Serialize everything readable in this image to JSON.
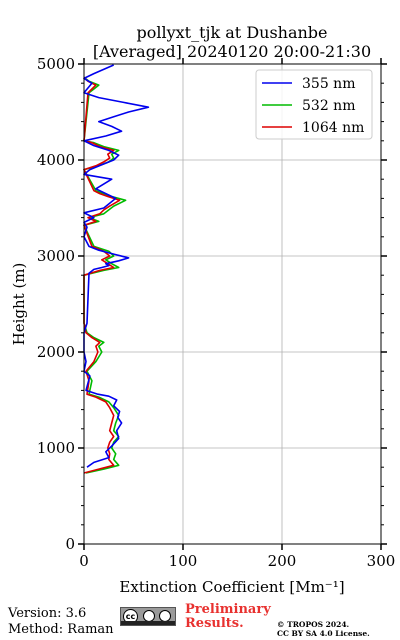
{
  "chart_data": {
    "type": "line",
    "title": "pollyxt_tjk at Dushanbe",
    "subtitle": "[Averaged] 20240120 20:00-21:30",
    "xlabel": "Extinction Coefficient [Mm⁻¹]",
    "ylabel": "Height (m)",
    "xlim": [
      0,
      300
    ],
    "ylim": [
      0,
      5000
    ],
    "xticks": [
      "0",
      "100",
      "200",
      "300"
    ],
    "yticks": [
      "0",
      "1000",
      "2000",
      "3000",
      "4000",
      "5000"
    ],
    "xtick_values": [
      0,
      100,
      200,
      300
    ],
    "ytick_values": [
      0,
      1000,
      2000,
      3000,
      4000,
      5000
    ],
    "grid": true,
    "legend_position": "top-right",
    "series": [
      {
        "name": "355 nm",
        "color": "#0000ee",
        "x": [
          3,
          10,
          25,
          22,
          28,
          35,
          33,
          38,
          34,
          36,
          30,
          33,
          25,
          14,
          2,
          6,
          0,
          2,
          0,
          0,
          0,
          3,
          5,
          10,
          18,
          25,
          22,
          35,
          45,
          30,
          15,
          5,
          0,
          3,
          0,
          10,
          0,
          20,
          32,
          12,
          28,
          0,
          6,
          18,
          30,
          35,
          25,
          10,
          0,
          22,
          38,
          28,
          15,
          30,
          45,
          65,
          40,
          15,
          0,
          8,
          0,
          10,
          30
        ],
        "y": [
          800,
          850,
          900,
          960,
          1020,
          1100,
          1180,
          1260,
          1320,
          1380,
          1440,
          1500,
          1540,
          1560,
          1600,
          1750,
          1800,
          1900,
          2000,
          2100,
          2200,
          2300,
          2820,
          2860,
          2880,
          2900,
          2920,
          2950,
          2980,
          3020,
          3060,
          3100,
          3200,
          3300,
          3350,
          3400,
          3450,
          3500,
          3600,
          3700,
          3800,
          3850,
          3900,
          3950,
          4000,
          4050,
          4100,
          4150,
          4200,
          4250,
          4300,
          4350,
          4400,
          4450,
          4500,
          4550,
          4600,
          4650,
          4700,
          4800,
          4850,
          4900,
          4990
        ]
      },
      {
        "name": "532 nm",
        "color": "#00bb00",
        "x": [
          2,
          20,
          35,
          30,
          32,
          28,
          30,
          35,
          30,
          32,
          35,
          30,
          25,
          15,
          5,
          8,
          3,
          12,
          18,
          15,
          20,
          10,
          3,
          0,
          0,
          20,
          35,
          28,
          22,
          30,
          25,
          10,
          0,
          15,
          5,
          20,
          25,
          30,
          42,
          28,
          20,
          12,
          0,
          15,
          25,
          30,
          28,
          35,
          20,
          10,
          0,
          5,
          10,
          15,
          5,
          0
        ],
        "y": [
          740,
          780,
          820,
          880,
          940,
          1000,
          1060,
          1120,
          1180,
          1260,
          1340,
          1420,
          1480,
          1530,
          1560,
          1700,
          1800,
          1900,
          2000,
          2060,
          2100,
          2150,
          2200,
          2300,
          2800,
          2850,
          2880,
          2920,
          2960,
          3000,
          3050,
          3100,
          3320,
          3360,
          3400,
          3440,
          3480,
          3520,
          3580,
          3620,
          3650,
          3680,
          3900,
          3940,
          3980,
          4020,
          4060,
          4100,
          4140,
          4180,
          4200,
          4700,
          4740,
          4780,
          4820,
          4860
        ]
      },
      {
        "name": "1064 nm",
        "color": "#dd0000",
        "x": [
          0,
          15,
          30,
          25,
          26,
          24,
          26,
          30,
          26,
          28,
          30,
          26,
          22,
          12,
          3,
          5,
          2,
          10,
          14,
          12,
          16,
          8,
          2,
          0,
          0,
          16,
          30,
          24,
          18,
          26,
          20,
          8,
          0,
          12,
          4,
          16,
          20,
          26,
          36,
          24,
          16,
          10,
          0,
          12,
          20,
          26,
          24,
          30,
          16,
          8,
          0,
          4,
          8,
          12,
          4,
          0
        ],
        "y": [
          740,
          780,
          820,
          880,
          940,
          1000,
          1060,
          1120,
          1180,
          1260,
          1340,
          1420,
          1480,
          1530,
          1560,
          1700,
          1800,
          1900,
          2000,
          2060,
          2100,
          2150,
          2200,
          2300,
          2800,
          2850,
          2880,
          2920,
          2960,
          3000,
          3050,
          3100,
          3320,
          3360,
          3400,
          3440,
          3480,
          3520,
          3580,
          3620,
          3650,
          3680,
          3900,
          3940,
          3980,
          4020,
          4060,
          4100,
          4140,
          4180,
          4200,
          4700,
          4740,
          4780,
          4820,
          4860
        ]
      }
    ]
  },
  "footer": {
    "version": "Version: 3.6",
    "method": "Method: Raman",
    "preliminary": "Preliminary\nResults.",
    "copyright_line1": "© TROPOS 2024.",
    "copyright_line2": "CC BY SA 4.0 License.",
    "badge_text": "cc"
  }
}
